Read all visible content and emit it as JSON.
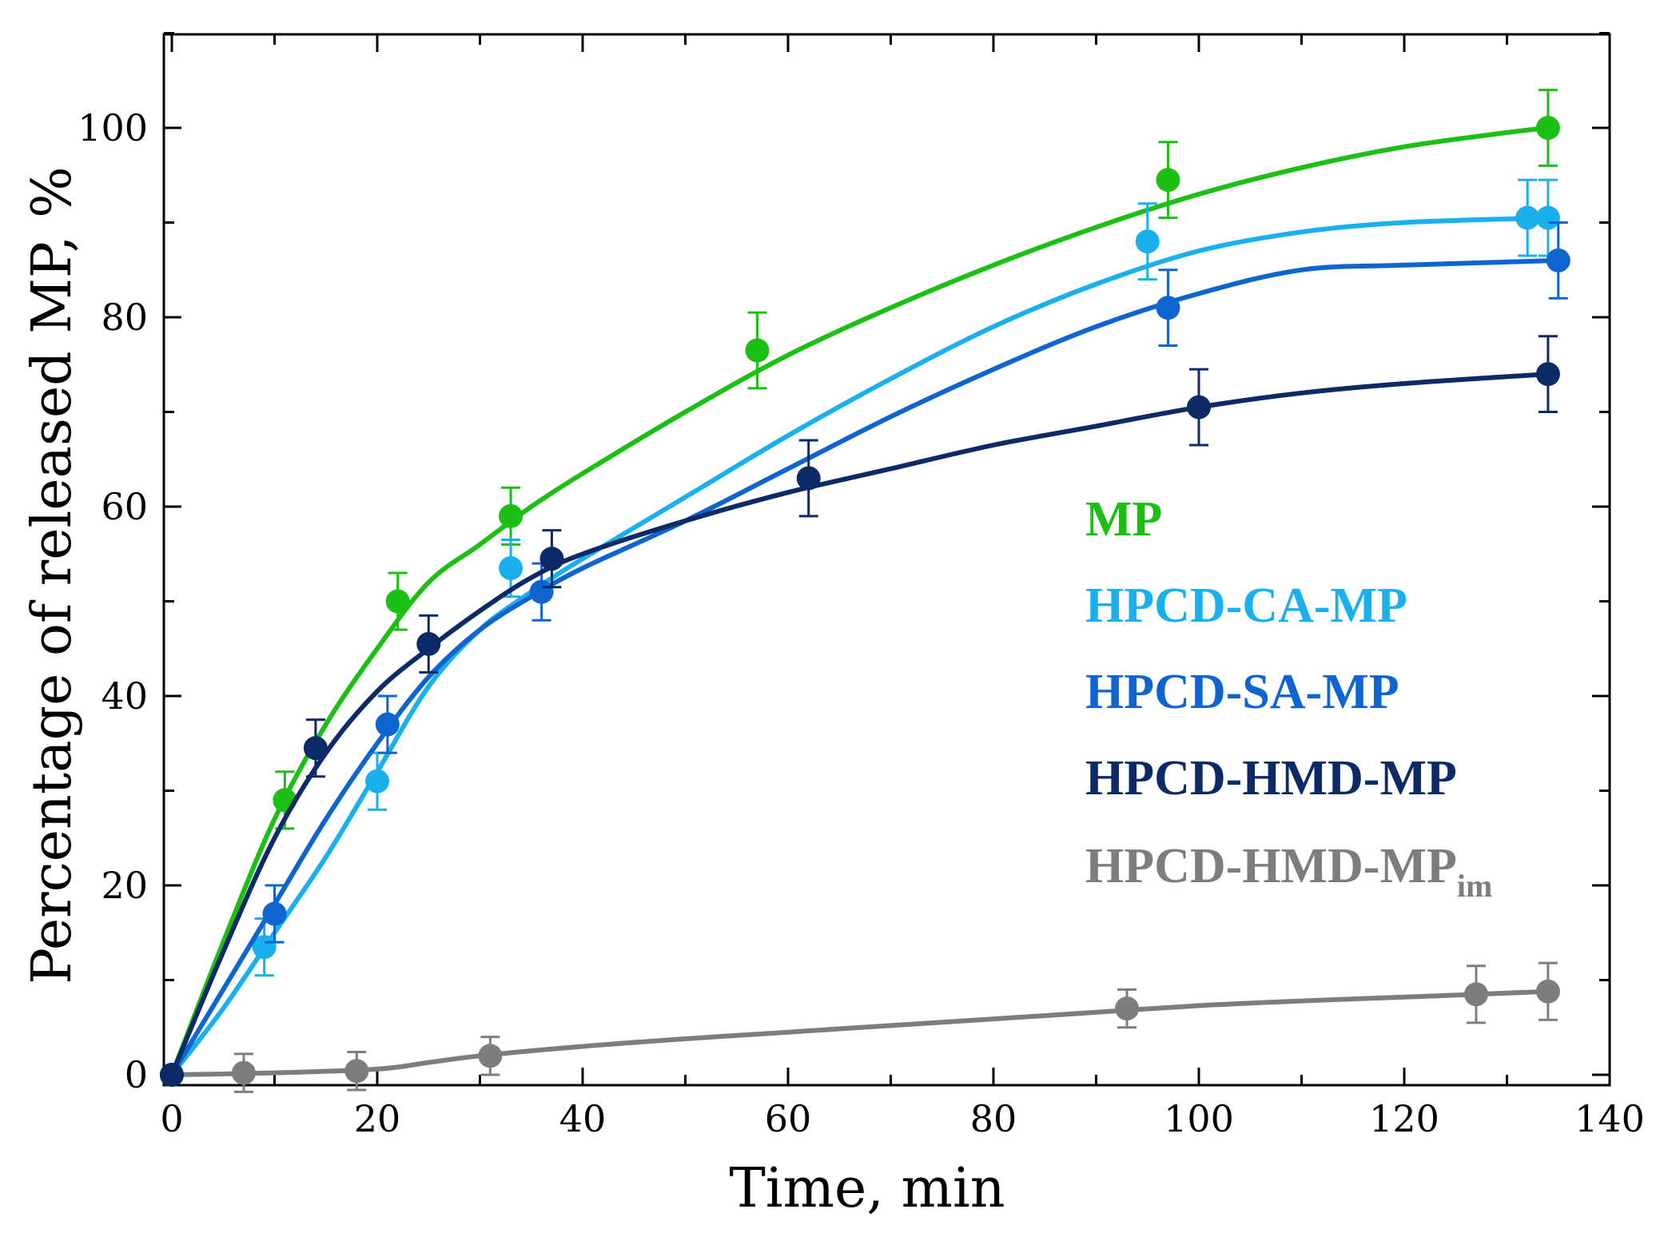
{
  "chart_data": {
    "type": "line",
    "title": "",
    "xlabel": "Time, min",
    "ylabel": "Percentage of released MP, %",
    "xlim": [
      0,
      140
    ],
    "ylim": [
      0,
      110
    ],
    "xticks": [
      0,
      20,
      40,
      60,
      80,
      100,
      120,
      140
    ],
    "yticks": [
      0,
      20,
      40,
      60,
      80,
      100
    ],
    "xtick_labels": [
      "0",
      "20",
      "40",
      "60",
      "80",
      "100",
      "120",
      "140"
    ],
    "ytick_labels": [
      "0",
      "20",
      "40",
      "60",
      "80",
      "100"
    ],
    "grid": false,
    "legend_position": "right-center",
    "series": [
      {
        "name": "MP",
        "color": "#1cbf14",
        "points": [
          [
            0,
            0
          ],
          [
            11,
            29
          ],
          [
            22,
            50
          ],
          [
            33,
            59
          ],
          [
            57,
            76.5
          ],
          [
            97,
            94.5
          ],
          [
            134,
            100
          ]
        ],
        "errors": [
          0,
          3,
          3,
          3,
          4,
          4,
          4
        ],
        "curve": [
          [
            0,
            0
          ],
          [
            5,
            14
          ],
          [
            10,
            27
          ],
          [
            15,
            37
          ],
          [
            20,
            45
          ],
          [
            25,
            52
          ],
          [
            30,
            56
          ],
          [
            35,
            60
          ],
          [
            40,
            63.5
          ],
          [
            50,
            70
          ],
          [
            60,
            76
          ],
          [
            70,
            81
          ],
          [
            80,
            85.5
          ],
          [
            90,
            89.5
          ],
          [
            100,
            93
          ],
          [
            110,
            95.8
          ],
          [
            120,
            98
          ],
          [
            130,
            99.5
          ],
          [
            134,
            100
          ]
        ]
      },
      {
        "name": "HPCD-CA-MP",
        "color": "#1ab0ee",
        "points": [
          [
            0,
            0
          ],
          [
            9,
            13.5
          ],
          [
            20,
            31
          ],
          [
            33,
            53.5
          ],
          [
            95,
            88
          ],
          [
            132,
            90.5
          ],
          [
            134,
            90.5
          ]
        ],
        "errors": [
          0,
          3,
          3,
          3,
          4,
          4,
          4
        ],
        "curve": [
          [
            0,
            0
          ],
          [
            5,
            7
          ],
          [
            10,
            15
          ],
          [
            15,
            23
          ],
          [
            20,
            32
          ],
          [
            25,
            41
          ],
          [
            30,
            47
          ],
          [
            35,
            51
          ],
          [
            40,
            54.5
          ],
          [
            50,
            61
          ],
          [
            60,
            67.5
          ],
          [
            70,
            73.5
          ],
          [
            80,
            79
          ],
          [
            90,
            83.5
          ],
          [
            100,
            87
          ],
          [
            110,
            89
          ],
          [
            120,
            90
          ],
          [
            134,
            90.5
          ]
        ]
      },
      {
        "name": "HPCD-SA-MP",
        "color": "#0e65cf",
        "points": [
          [
            0,
            0
          ],
          [
            10,
            17
          ],
          [
            21,
            37
          ],
          [
            36,
            51
          ],
          [
            97,
            81
          ],
          [
            135,
            86
          ]
        ],
        "errors": [
          0,
          3,
          3,
          3,
          4,
          4
        ],
        "curve": [
          [
            0,
            0
          ],
          [
            5,
            9
          ],
          [
            10,
            18
          ],
          [
            15,
            27
          ],
          [
            20,
            35
          ],
          [
            25,
            42
          ],
          [
            30,
            47
          ],
          [
            35,
            50.5
          ],
          [
            40,
            53.5
          ],
          [
            50,
            58.5
          ],
          [
            60,
            64
          ],
          [
            70,
            69.5
          ],
          [
            80,
            74.5
          ],
          [
            90,
            79
          ],
          [
            100,
            82.5
          ],
          [
            110,
            85
          ],
          [
            120,
            85.5
          ],
          [
            135,
            86
          ]
        ]
      },
      {
        "name": "HPCD-HMD-MP",
        "color": "#0c2a66",
        "points": [
          [
            0,
            0
          ],
          [
            14,
            34.5
          ],
          [
            25,
            45.5
          ],
          [
            37,
            54.5
          ],
          [
            62,
            63
          ],
          [
            100,
            70.5
          ],
          [
            134,
            74
          ]
        ],
        "errors": [
          0,
          3,
          3,
          3,
          4,
          4,
          4
        ],
        "curve": [
          [
            0,
            0
          ],
          [
            5,
            13
          ],
          [
            10,
            25
          ],
          [
            15,
            34
          ],
          [
            20,
            40.5
          ],
          [
            25,
            45
          ],
          [
            30,
            49
          ],
          [
            35,
            52.5
          ],
          [
            40,
            55
          ],
          [
            50,
            58.5
          ],
          [
            60,
            61.5
          ],
          [
            70,
            64
          ],
          [
            80,
            66.5
          ],
          [
            90,
            68.5
          ],
          [
            100,
            70.5
          ],
          [
            110,
            72
          ],
          [
            120,
            73
          ],
          [
            134,
            74
          ]
        ]
      },
      {
        "name": "HPCD-HMD-MP",
        "name_subscript": "im",
        "color": "#7d7d7d",
        "points": [
          [
            0,
            0
          ],
          [
            7,
            0.2
          ],
          [
            18,
            0.4
          ],
          [
            31,
            2
          ],
          [
            93,
            7
          ],
          [
            127,
            8.5
          ],
          [
            134,
            8.8
          ]
        ],
        "errors": [
          0,
          2,
          2,
          2,
          2,
          3,
          3
        ],
        "curve": [
          [
            0,
            0
          ],
          [
            10,
            0.2
          ],
          [
            20,
            0.6
          ],
          [
            25,
            1.3
          ],
          [
            30,
            2
          ],
          [
            40,
            3
          ],
          [
            50,
            3.8
          ],
          [
            60,
            4.5
          ],
          [
            70,
            5.2
          ],
          [
            80,
            5.9
          ],
          [
            90,
            6.6
          ],
          [
            100,
            7.3
          ],
          [
            110,
            7.8
          ],
          [
            120,
            8.2
          ],
          [
            134,
            8.8
          ]
        ]
      }
    ]
  }
}
